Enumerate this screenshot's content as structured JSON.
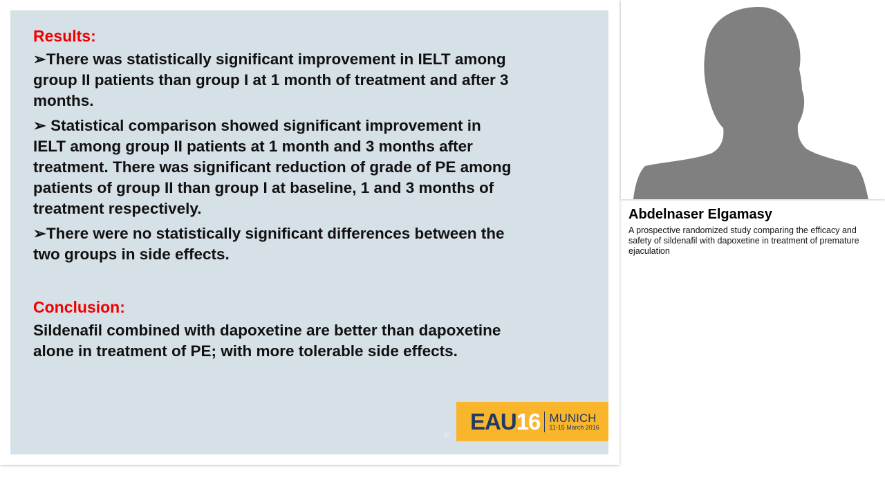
{
  "slide": {
    "results_heading": "Results:",
    "results": [
      [
        "➢There was statistically significant improvement in IELT among",
        "group II patients than group I at 1 month of treatment and after 3",
        "months."
      ],
      [
        "➢ Statistical comparison  showed significant improvement in",
        "IELT among group II patients at 1 month and 3 months after",
        "treatment. There was significant reduction of grade of PE among",
        "patients of group II than  group I at baseline, 1 and 3 months of",
        "treatment respectively."
      ],
      [
        "➢There were no statistically significant differences between the",
        "two groups in side effects."
      ]
    ],
    "conclusion_heading": "Conclusion:",
    "conclusion": [
      "Sildenafil combined with dapoxetine  are better than dapoxetine",
      "alone in treatment of PE; with more tolerable side effects."
    ],
    "logo": {
      "eau": "EAU",
      "num": "16",
      "city": "MUNICH",
      "dates": "11-15 March 2016"
    },
    "copyright": "©"
  },
  "speaker": {
    "name": "Abdelnaser Elgamasy",
    "title": "A prospective randomized study comparing the efficacy and safety of sildenafil with dapoxetine in treatment of premature ejaculation"
  },
  "colors": {
    "heading": "#f00000",
    "slide_bg": "#d6e0e7",
    "logo_bg": "#f9b52b",
    "silhouette": "#808080"
  }
}
